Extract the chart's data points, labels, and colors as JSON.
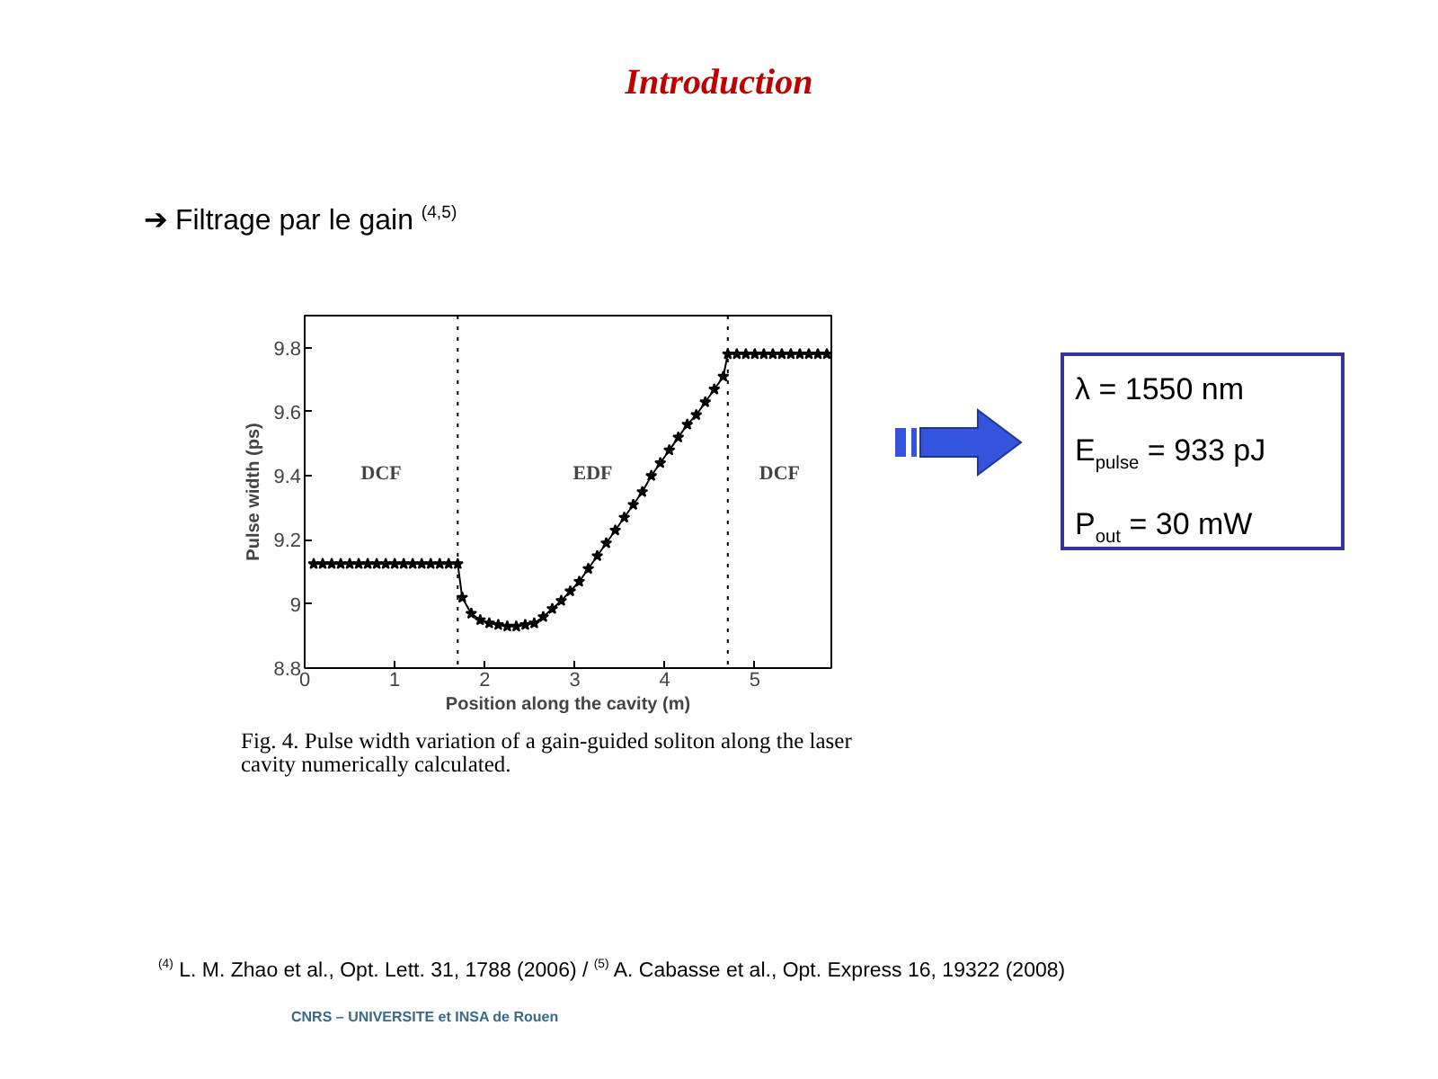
{
  "chart_data": {
    "type": "line",
    "title": "Introduction",
    "subtitle": "➔ Filtrage par le gain $^{(4,5)}$",
    "xlabel": "Position along the cavity (m)",
    "ylabel": "Pulse width (ps)",
    "series": [
      {
        "color": "#000000",
        "x": [
          0.1,
          0.2,
          0.3,
          0.4,
          0.5,
          0.6,
          0.7,
          0.8,
          0.9,
          1.0,
          1.1,
          1.2,
          1.3,
          1.4,
          1.5,
          1.6,
          1.7,
          1.75,
          1.85,
          1.95,
          2.05,
          2.15,
          2.25,
          2.35,
          2.45,
          2.55,
          2.65,
          2.75,
          2.85,
          2.95,
          3.05,
          3.15,
          3.25,
          3.35,
          3.45,
          3.55,
          3.65,
          3.75,
          3.85,
          3.95,
          4.05,
          4.15,
          4.25,
          4.35,
          4.45,
          4.55,
          4.65,
          4.7,
          4.8,
          4.9,
          5.0,
          5.1,
          5.2,
          5.3,
          5.4,
          5.5,
          5.6,
          5.7,
          5.8
        ],
        "values": [
          9.125,
          9.125,
          9.125,
          9.125,
          9.125,
          9.125,
          9.125,
          9.125,
          9.125,
          9.125,
          9.125,
          9.125,
          9.125,
          9.125,
          9.125,
          9.125,
          9.125,
          9.02,
          8.97,
          8.95,
          8.94,
          8.935,
          8.93,
          8.93,
          8.935,
          8.94,
          8.96,
          8.985,
          9.01,
          9.04,
          9.07,
          9.11,
          9.15,
          9.19,
          9.23,
          9.27,
          9.31,
          9.35,
          9.4,
          9.44,
          9.48,
          9.52,
          9.56,
          9.59,
          9.63,
          9.67,
          9.71,
          9.78,
          9.78,
          9.78,
          9.78,
          9.78,
          9.78,
          9.78,
          9.78,
          9.78,
          9.78,
          9.78,
          9.78
        ]
      }
    ],
    "xlim": [
      0,
      5.85
    ],
    "ylim": [
      8.8,
      9.9
    ],
    "xticks": [
      0,
      1,
      2,
      3,
      4,
      5
    ],
    "yticks": [
      8.8,
      9,
      9.2,
      9.4,
      9.6,
      9.8
    ],
    "marker": "star",
    "grid": false,
    "ref_lines": [
      {
        "axis": "x",
        "value": 1.7,
        "line_style": "dotted",
        "color": "#000000"
      },
      {
        "axis": "x",
        "value": 4.7,
        "line_style": "dotted",
        "color": "#000000"
      }
    ],
    "annotations": [
      "DCF",
      "EDF",
      "DCF",
      "Fig. 4.  Pulse width variation of a gain-guided soliton along the laser cavity numerically calculated.",
      "λ = 1550 nm",
      "E$_{pulse}$ = 933 pJ",
      "P$_{out}$ = 30 mW",
      "$^{(4)}$ L. M. Zhao et al., Opt. Lett. 31, 1788 (2006) / $^{(5)}$ A. Cabasse et al., Opt. Express 16, 19322 (2008)",
      "CNRS – UNIVERSITE et INSA de Rouen"
    ]
  }
}
